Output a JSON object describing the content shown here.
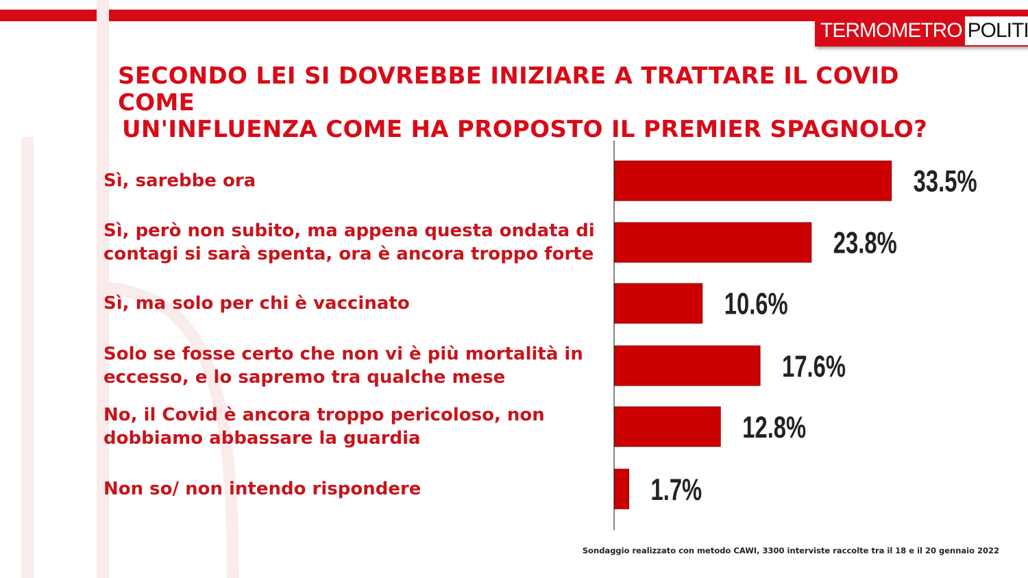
{
  "brand": {
    "logo_part1": "TERMOMETRO",
    "logo_part2": "POLITICO",
    "accent_color": "#d90a17"
  },
  "title_lines": [
    "SECONDO LEI SI DOVREBBE INIZIARE A TRATTARE IL COVID COME",
    "UN'INFLUENZA COME HA PROPOSTO IL PREMIER SPAGNOLO?"
  ],
  "footnote": "Sondaggio realizzato con metodo CAWI, 3300 interviste raccolte tra il 18 e il 20 gennaio 2022",
  "chart_data": {
    "type": "bar",
    "orientation": "horizontal",
    "categories": [
      [
        "Sì, sarebbe ora"
      ],
      [
        "Sì, però non subito, ma appena questa ondata di",
        "contagi si sarà  spenta, ora è ancora troppo forte"
      ],
      [
        "Sì, ma solo per chi è vaccinato"
      ],
      [
        "Solo se fosse certo che non vi è più mortalità  in",
        "eccesso, e lo sapremo tra qualche mese"
      ],
      [
        "No, il Covid è ancora troppo pericoloso, non",
        "dobbiamo abbassare la guardia"
      ],
      [
        "Non so/ non intendo rispondere"
      ]
    ],
    "values": [
      33.5,
      23.8,
      10.6,
      17.6,
      12.8,
      1.7
    ],
    "value_labels": [
      "33.5%",
      "23.8%",
      "10.6%",
      "17.6%",
      "12.8%",
      "1.7%"
    ],
    "bar_color": "#cc0000",
    "grid": false
  }
}
